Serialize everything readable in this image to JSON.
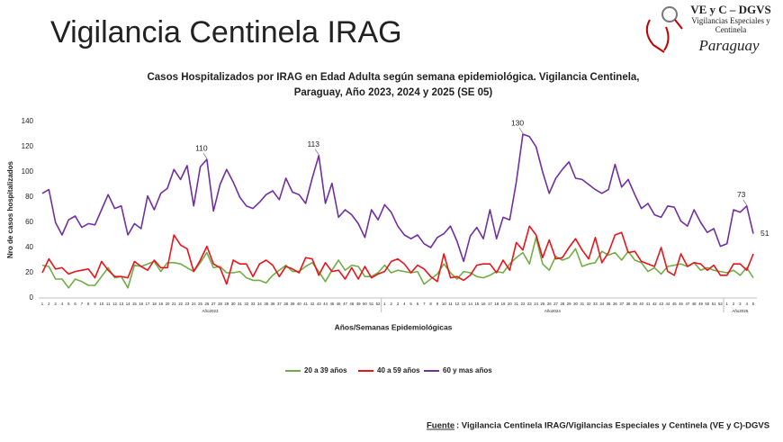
{
  "slide_title": "Vigilancia Centinela IRAG",
  "logo": {
    "title": "VE y C – DGVS",
    "line1": "Vigilancias Especiales y",
    "line2": "Centinela",
    "country": "Paraguay"
  },
  "source": {
    "label": "Fuente",
    "text": ": Vigilancia  Centinela IRAG/Vigilancias Especiales y Centinela (VE y C)-DGVS"
  },
  "chart_data": {
    "type": "line",
    "title": [
      "Casos Hospitalizados por IRAG en Edad Adulta según semana epidemiológica. Vigilancia Centinela,",
      "Paraguay, Año 2023, 2024 y 2025 (SE 05)"
    ],
    "y_label": "Nro de casos hospitalizados",
    "x_label": "Años/Semanas Epidemiológicas",
    "x_group_labels": [
      "Año2023",
      "Año2024",
      "Año2025"
    ],
    "categories": [
      "1",
      "2",
      "3",
      "4",
      "5",
      "6",
      "7",
      "8",
      "9",
      "10",
      "11",
      "12",
      "13",
      "14",
      "15",
      "16",
      "17",
      "18",
      "19",
      "20",
      "21",
      "22",
      "23",
      "24",
      "25",
      "26",
      "27",
      "28",
      "29",
      "30",
      "31",
      "32",
      "33",
      "34",
      "35",
      "36",
      "37",
      "38",
      "39",
      "40",
      "41",
      "42",
      "43",
      "44",
      "45",
      "46",
      "47",
      "48",
      "49",
      "50",
      "51",
      "52",
      "1",
      "2",
      "3",
      "4",
      "5",
      "6",
      "7",
      "8",
      "9",
      "10",
      "11",
      "12",
      "13",
      "14",
      "15",
      "16",
      "17",
      "18",
      "19",
      "20",
      "21",
      "22",
      "23",
      "24",
      "25",
      "26",
      "27",
      "28",
      "29",
      "30",
      "31",
      "32",
      "33",
      "34",
      "35",
      "36",
      "37",
      "38",
      "39",
      "40",
      "41",
      "42",
      "43",
      "44",
      "45",
      "46",
      "47",
      "48",
      "49",
      "50",
      "51",
      "52",
      "1",
      "2",
      "3",
      "4",
      "5"
    ],
    "ylim": [
      0,
      140
    ],
    "yticks": [
      0,
      20,
      40,
      60,
      80,
      100,
      120,
      140
    ],
    "grid": false,
    "series": [
      {
        "name": "20 a 39 años",
        "color": "#70ad47",
        "values": [
          26,
          25,
          15,
          15,
          8,
          15,
          13,
          10,
          10,
          17,
          24,
          16,
          17,
          8,
          26,
          25,
          27,
          29,
          21,
          28,
          28,
          27,
          24,
          21,
          28,
          36,
          24,
          25,
          20,
          20,
          21,
          16,
          14,
          14,
          12,
          18,
          22,
          26,
          21,
          21,
          25,
          28,
          21,
          13,
          22,
          30,
          22,
          26,
          25,
          17,
          17,
          20,
          26,
          20,
          22,
          21,
          20,
          21,
          11,
          15,
          19,
          27,
          20,
          15,
          21,
          20,
          17,
          16,
          18,
          21,
          20,
          27,
          32,
          36,
          27,
          48,
          27,
          22,
          33,
          30,
          32,
          39,
          25,
          27,
          28,
          37,
          34,
          36,
          30,
          37,
          30,
          28,
          21,
          24,
          19,
          25,
          26,
          27,
          25,
          28,
          22,
          24,
          22,
          21,
          20,
          22,
          18,
          24,
          16
        ]
      },
      {
        "name": "40 a 59 años",
        "color": "#e8141b",
        "values": [
          20,
          31,
          23,
          24,
          19,
          21,
          22,
          23,
          16,
          29,
          22,
          17,
          17,
          16,
          29,
          25,
          22,
          30,
          24,
          24,
          50,
          42,
          39,
          21,
          30,
          41,
          27,
          24,
          11,
          30,
          27,
          27,
          17,
          27,
          30,
          26,
          17,
          25,
          23,
          20,
          32,
          31,
          18,
          28,
          21,
          22,
          15,
          24,
          15,
          25,
          16,
          19,
          21,
          29,
          31,
          27,
          20,
          26,
          23,
          17,
          13,
          35,
          16,
          17,
          14,
          18,
          26,
          27,
          27,
          20,
          30,
          22,
          44,
          38,
          57,
          50,
          32,
          46,
          31,
          32,
          40,
          47,
          38,
          31,
          48,
          28,
          36,
          50,
          52,
          36,
          37,
          29,
          27,
          25,
          40,
          21,
          18,
          35,
          25,
          28,
          27,
          22,
          26,
          18,
          18,
          27,
          27,
          22,
          35
        ]
      },
      {
        "name": "60 y mas años",
        "color": "#7030a0",
        "values": [
          83,
          86,
          60,
          50,
          62,
          65,
          56,
          59,
          58,
          70,
          82,
          71,
          73,
          50,
          59,
          55,
          81,
          70,
          83,
          87,
          102,
          94,
          105,
          73,
          104,
          110,
          69,
          90,
          102,
          92,
          80,
          73,
          71,
          76,
          82,
          85,
          78,
          95,
          84,
          82,
          75,
          95,
          113,
          75,
          91,
          64,
          70,
          66,
          59,
          48,
          70,
          62,
          74,
          68,
          57,
          50,
          47,
          50,
          43,
          40,
          48,
          51,
          57,
          45,
          29,
          49,
          56,
          47,
          70,
          47,
          64,
          62,
          92,
          130,
          128,
          120,
          100,
          83,
          95,
          102,
          108,
          95,
          94,
          90,
          86,
          83,
          86,
          106,
          88,
          94,
          82,
          71,
          75,
          66,
          64,
          73,
          72,
          61,
          57,
          70,
          60,
          52,
          55,
          41,
          43,
          70,
          68,
          73,
          51
        ],
        "value_labels": [
          null,
          null,
          null,
          null,
          null,
          null,
          null,
          null,
          null,
          null,
          null,
          null,
          null,
          null,
          null,
          null,
          null,
          null,
          null,
          null,
          null,
          null,
          null,
          null,
          null,
          "110",
          null,
          null,
          null,
          null,
          null,
          null,
          null,
          null,
          null,
          null,
          null,
          null,
          null,
          null,
          null,
          null,
          "113",
          null,
          null,
          null,
          null,
          null,
          null,
          null,
          null,
          null,
          null,
          null,
          null,
          null,
          null,
          null,
          null,
          null,
          null,
          null,
          null,
          null,
          null,
          null,
          null,
          null,
          null,
          null,
          null,
          null,
          null,
          "130",
          null,
          null,
          null,
          null,
          null,
          null,
          null,
          null,
          null,
          null,
          null,
          null,
          null,
          null,
          null,
          null,
          null,
          null,
          null,
          null,
          null,
          null,
          null,
          null,
          null,
          null,
          null,
          null,
          null,
          null,
          null,
          null,
          null,
          "73",
          "51"
        ]
      }
    ]
  }
}
